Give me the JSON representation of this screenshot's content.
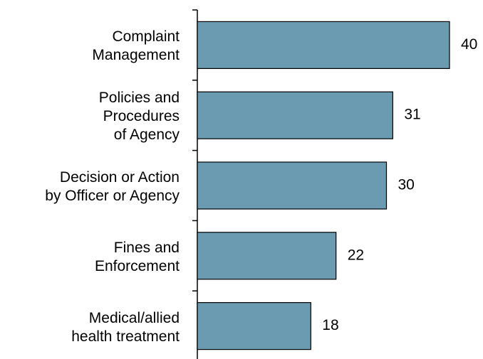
{
  "chart_data": {
    "type": "hbar",
    "categories": [
      "Complaint\nManagement",
      "Policies and\nProcedures\nof Agency",
      "Decision or Action\nby Officer or Agency",
      "Fines and\nEnforcement",
      "Medical/allied\nhealth treatment"
    ],
    "values": [
      40,
      31,
      30,
      22,
      18
    ],
    "color": "#6b9bb0"
  }
}
